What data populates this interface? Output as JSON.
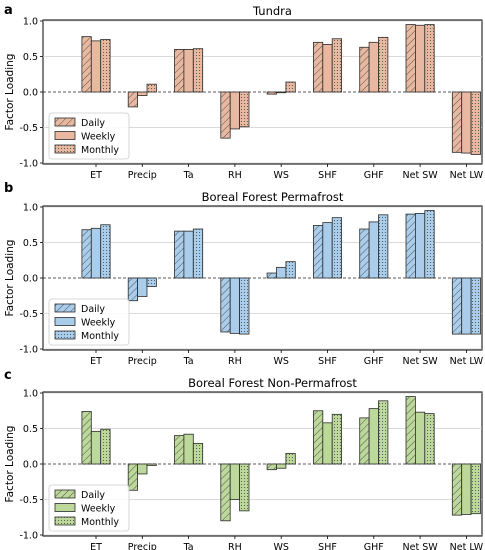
{
  "colors": {
    "Tundra": "#e8b9a0",
    "Boreal Forest Permafrost": "#a9cdea",
    "Boreal Forest Non-Permafrost": "#bcd89a",
    "edge": "#2b2b2b",
    "grid": "#cfcfcf"
  },
  "chart_data": [
    {
      "type": "bar",
      "panel": "a",
      "title": "Tundra",
      "ylabel": "Factor Loading",
      "ylim": [
        -1.0,
        1.0
      ],
      "yticks": [
        1.0,
        0.5,
        0.0,
        -0.5,
        -1.0
      ],
      "categories": [
        "ET",
        "Precip",
        "Ta",
        "RH",
        "WS",
        "SHF",
        "GHF",
        "Net SW",
        "Net LW"
      ],
      "series": [
        {
          "name": "Daily",
          "pattern": "hatch-diagonal",
          "values": [
            0.78,
            -0.21,
            0.6,
            -0.65,
            -0.03,
            0.7,
            0.63,
            0.95,
            -0.85
          ]
        },
        {
          "name": "Weekly",
          "pattern": "solid",
          "values": [
            0.72,
            -0.05,
            0.6,
            -0.52,
            -0.01,
            0.67,
            0.7,
            0.94,
            -0.86
          ]
        },
        {
          "name": "Monthly",
          "pattern": "dots",
          "values": [
            0.74,
            0.11,
            0.61,
            -0.49,
            0.14,
            0.75,
            0.77,
            0.95,
            -0.88
          ]
        }
      ],
      "legend": {
        "placement": "lower-left",
        "entries": [
          "Daily",
          "Weekly",
          "Monthly"
        ]
      },
      "grid": true
    },
    {
      "type": "bar",
      "panel": "b",
      "title": "Boreal Forest Permafrost",
      "ylabel": "Factor Loading",
      "ylim": [
        -1.0,
        1.0
      ],
      "yticks": [
        1.0,
        0.5,
        0.0,
        -0.5,
        -1.0
      ],
      "categories": [
        "ET",
        "Precip",
        "Ta",
        "RH",
        "WS",
        "SHF",
        "GHF",
        "Net SW",
        "Net LW"
      ],
      "series": [
        {
          "name": "Daily",
          "pattern": "hatch-diagonal",
          "values": [
            0.68,
            -0.32,
            0.66,
            -0.76,
            0.07,
            0.74,
            0.69,
            0.9,
            -0.79
          ]
        },
        {
          "name": "Weekly",
          "pattern": "solid",
          "values": [
            0.7,
            -0.26,
            0.66,
            -0.78,
            0.15,
            0.78,
            0.79,
            0.91,
            -0.79
          ]
        },
        {
          "name": "Monthly",
          "pattern": "dots",
          "values": [
            0.75,
            -0.12,
            0.69,
            -0.79,
            0.23,
            0.85,
            0.89,
            0.95,
            -0.79
          ]
        }
      ],
      "legend": {
        "placement": "lower-left",
        "entries": [
          "Daily",
          "Weekly",
          "Monthly"
        ]
      },
      "grid": true
    },
    {
      "type": "bar",
      "panel": "c",
      "title": "Boreal Forest Non-Permafrost",
      "ylabel": "Factor Loading",
      "ylim": [
        -1.0,
        1.0
      ],
      "yticks": [
        1.0,
        0.5,
        0.0,
        -0.5,
        -1.0
      ],
      "categories": [
        "ET",
        "Precip",
        "Ta",
        "RH",
        "WS",
        "SHF",
        "GHF",
        "Net SW",
        "Net LW"
      ],
      "series": [
        {
          "name": "Daily",
          "pattern": "hatch-diagonal",
          "values": [
            0.74,
            -0.37,
            0.4,
            -0.8,
            -0.08,
            0.75,
            0.65,
            0.95,
            -0.72
          ]
        },
        {
          "name": "Weekly",
          "pattern": "solid",
          "values": [
            0.46,
            -0.14,
            0.42,
            -0.5,
            -0.06,
            0.58,
            0.78,
            0.73,
            -0.71
          ]
        },
        {
          "name": "Monthly",
          "pattern": "dots",
          "values": [
            0.49,
            -0.02,
            0.29,
            -0.66,
            0.15,
            0.7,
            0.89,
            0.71,
            -0.7
          ]
        }
      ],
      "legend": {
        "placement": "lower-left",
        "entries": [
          "Daily",
          "Weekly",
          "Monthly"
        ]
      },
      "grid": true
    }
  ]
}
